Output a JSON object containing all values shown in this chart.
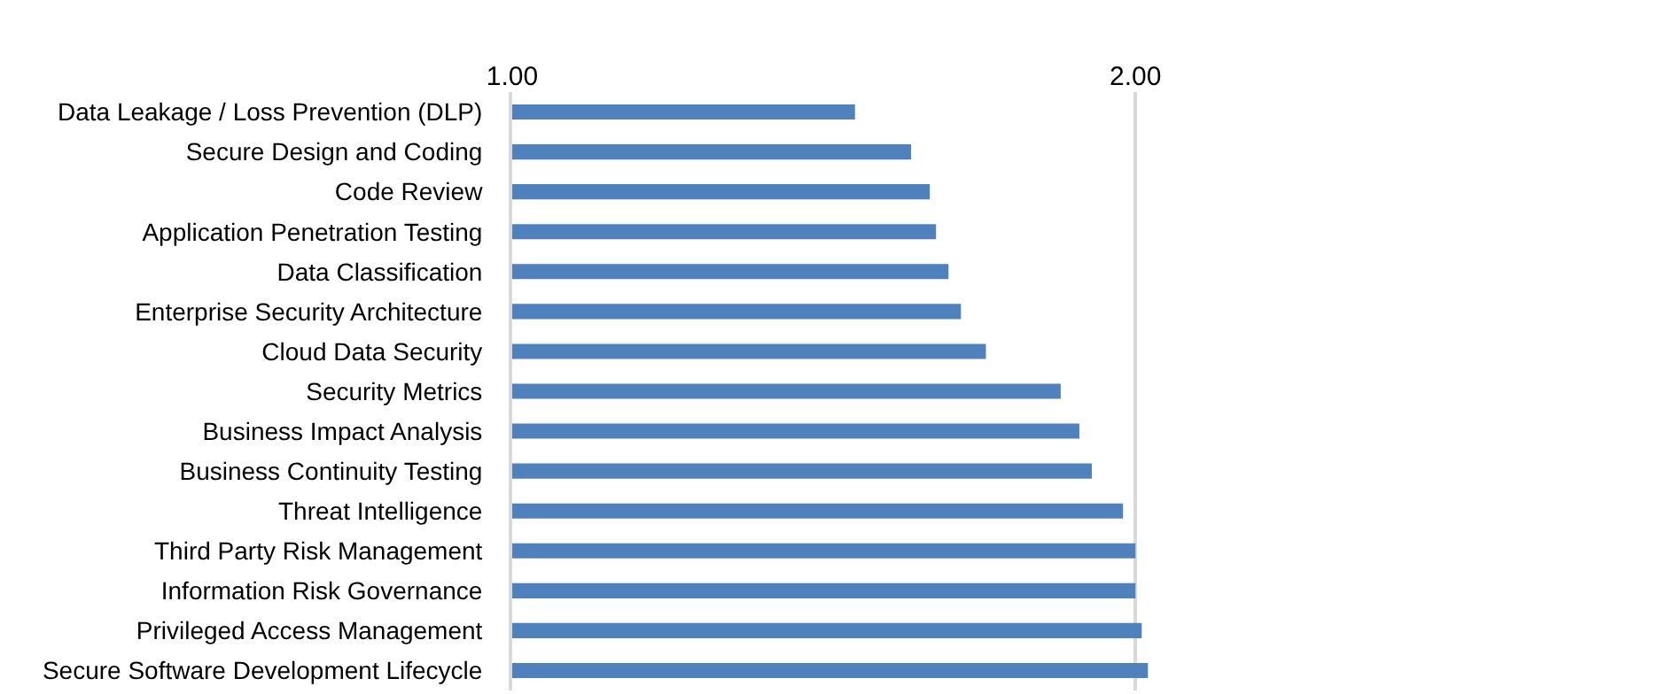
{
  "chart_data": {
    "type": "bar",
    "orientation": "horizontal",
    "categories": [
      "Data Leakage / Loss Prevention (DLP)",
      "Secure Design and Coding",
      "Code Review",
      "Application Penetration Testing",
      "Data Classification",
      "Enterprise Security Architecture",
      "Cloud Data Security",
      "Security Metrics",
      "Business Impact Analysis",
      "Business Continuity Testing",
      "Threat Intelligence",
      "Third Party Risk Management",
      "Information Risk Governance",
      "Privileged Access Management",
      "Secure Software Development Lifecycle"
    ],
    "values": [
      1.55,
      1.64,
      1.67,
      1.68,
      1.7,
      1.72,
      1.76,
      1.88,
      1.91,
      1.93,
      1.98,
      2.0,
      2.0,
      2.01,
      2.02
    ],
    "color": "#4f81bd",
    "xlim": [
      1,
      2.84
    ],
    "xticks": [
      {
        "value": 1,
        "label": "1.00"
      },
      {
        "value": 2,
        "label": "2.00"
      }
    ],
    "grid": "x"
  }
}
